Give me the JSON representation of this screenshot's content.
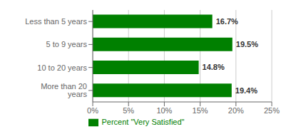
{
  "chart_data": {
    "type": "bar",
    "orientation": "horizontal",
    "categories": [
      "Less than 5 years",
      "5 to 9 years",
      "10 to 20 years",
      "More than 20 years"
    ],
    "series": [
      {
        "name": "Percent \"Very Satisfied\"",
        "color": "#008000",
        "values": [
          16.7,
          19.5,
          14.8,
          19.4
        ],
        "value_labels": [
          "16.7%",
          "19.5%",
          "14.8%",
          "19.4%"
        ]
      }
    ],
    "xlim": [
      0,
      25
    ],
    "xticks": [
      {
        "value": 0,
        "label": "0%"
      },
      {
        "value": 5,
        "label": "5%"
      },
      {
        "value": 10,
        "label": "10%"
      },
      {
        "value": 15,
        "label": "15%"
      },
      {
        "value": 20,
        "label": "20%"
      },
      {
        "value": 25,
        "label": "25%"
      }
    ],
    "grid": true,
    "data_labels": true,
    "legend": "bottom"
  }
}
